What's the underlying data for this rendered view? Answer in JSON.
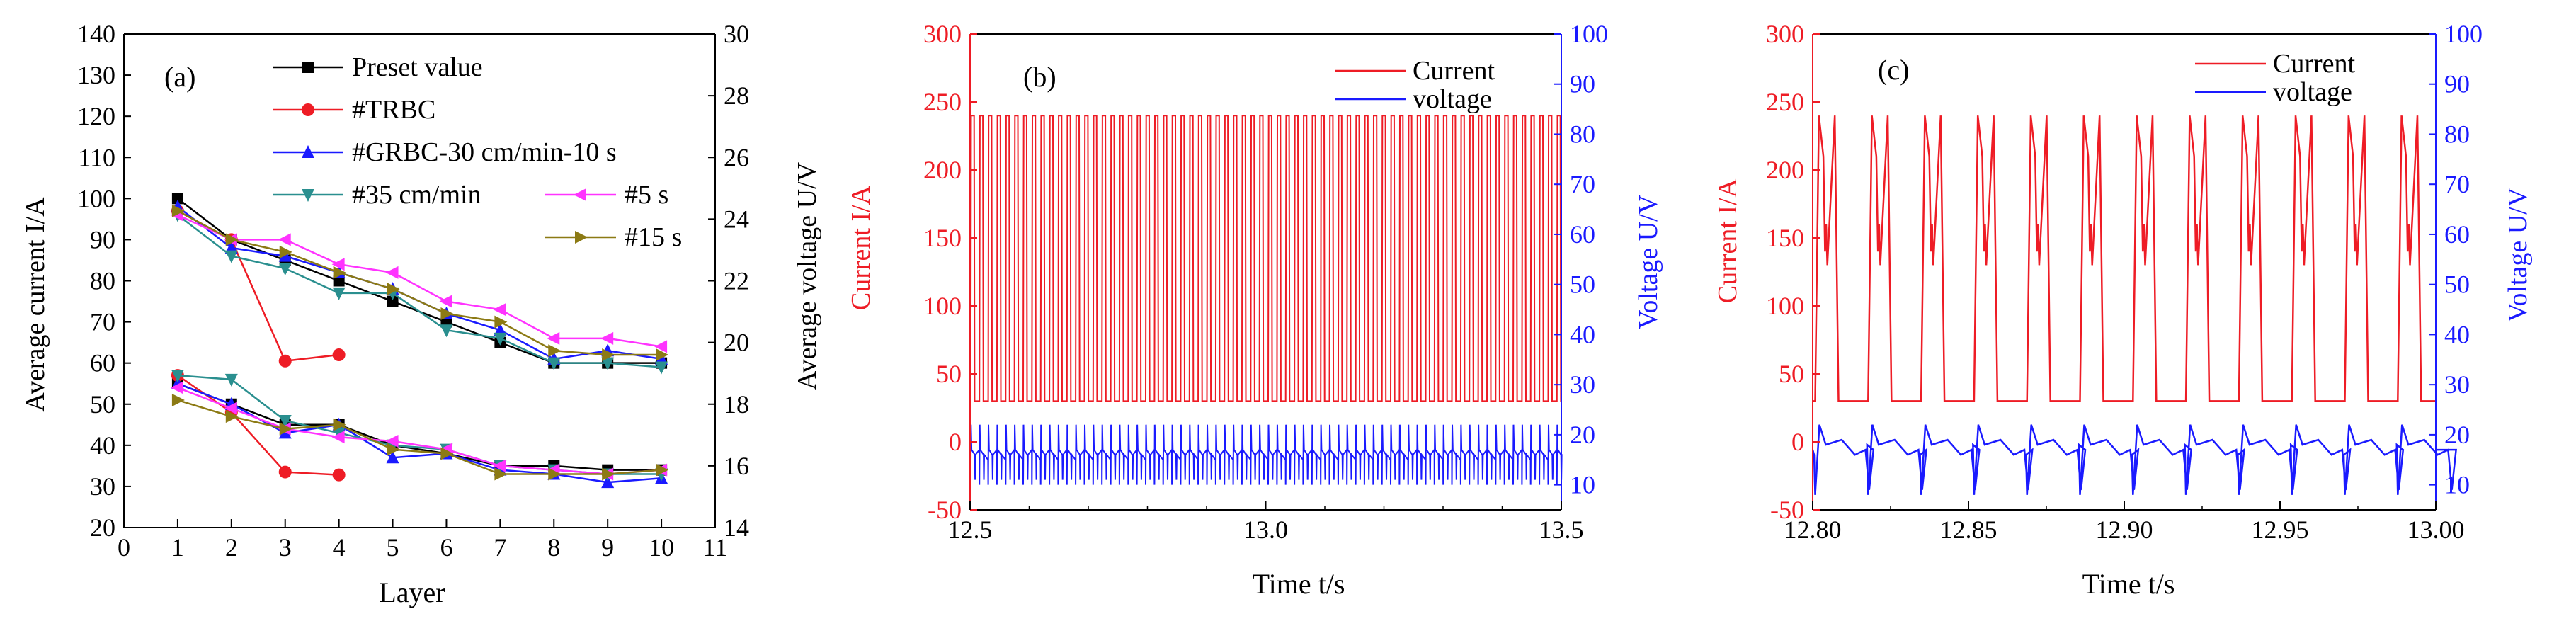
{
  "colors": {
    "black": "#000000",
    "red": "#ee1c25",
    "blue": "#1a1aff",
    "teal": "#2a8f8f",
    "magenta": "#ff33ff",
    "olive": "#8c7a14"
  },
  "chart_data": [
    {
      "id": "a",
      "type": "line",
      "panel_label": "(a)",
      "xlabel": "Layer",
      "ylabel_left": "Average current I/A",
      "ylabel_right": "Average voltage U/V",
      "xlim": [
        0,
        11
      ],
      "ylim_left": [
        20,
        140
      ],
      "ylim_right": [
        14,
        30
      ],
      "x_ticks": [
        "0",
        "1",
        "2",
        "3",
        "4",
        "5",
        "6",
        "7",
        "8",
        "9",
        "10",
        "11"
      ],
      "y_left_ticks": [
        "20",
        "30",
        "40",
        "50",
        "60",
        "70",
        "80",
        "90",
        "100",
        "110",
        "120",
        "130",
        "140"
      ],
      "y_right_ticks": [
        "14",
        "16",
        "18",
        "20",
        "22",
        "24",
        "26",
        "28",
        "30"
      ],
      "legend": [
        {
          "label": "Preset value",
          "color": "#000000",
          "marker": "square"
        },
        {
          "label": "#TRBC",
          "color": "#ee1c25",
          "marker": "circle"
        },
        {
          "label": "#GRBC-30 cm/min-10 s",
          "color": "#1a1aff",
          "marker": "triangle-up"
        },
        {
          "label": "#35 cm/min",
          "color": "#2a8f8f",
          "marker": "triangle-down"
        },
        {
          "label": "#5 s",
          "color": "#ff33ff",
          "marker": "triangle-left"
        },
        {
          "label": "#15 s",
          "color": "#8c7a14",
          "marker": "triangle-right"
        }
      ],
      "series": [
        {
          "name": "Preset value",
          "color": "#000000",
          "marker": "square",
          "x": [
            1,
            2,
            3,
            4,
            5,
            6,
            7,
            8,
            9,
            10
          ],
          "current": [
            100,
            90,
            85,
            80,
            75,
            70,
            65,
            60,
            60,
            60
          ],
          "current_low": [
            55,
            50,
            45,
            45,
            40,
            38,
            35,
            35,
            34,
            34
          ]
        },
        {
          "name": "#TRBC",
          "color": "#ee1c25",
          "marker": "circle",
          "x": [
            1,
            2,
            3,
            4
          ],
          "current": [
            97,
            90,
            60.5,
            62
          ],
          "current_low": [
            57,
            48,
            33.5,
            32.8
          ]
        },
        {
          "name": "#GRBC-30 cm/min-10 s",
          "color": "#1a1aff",
          "marker": "triangle-up",
          "x": [
            1,
            2,
            3,
            4,
            5,
            6,
            7,
            8,
            9,
            10
          ],
          "current": [
            98,
            88,
            86,
            82,
            78,
            72,
            68,
            61,
            63,
            61
          ],
          "current_low": [
            55,
            50,
            43,
            45,
            37,
            38,
            34,
            33,
            31,
            32
          ]
        },
        {
          "name": "#35 cm/min",
          "color": "#2a8f8f",
          "marker": "triangle-down",
          "x": [
            1,
            2,
            3,
            4,
            5,
            6,
            7,
            8,
            9,
            10
          ],
          "current": [
            96,
            86,
            83,
            77,
            77,
            68,
            66,
            60,
            60,
            59
          ],
          "current_low": [
            57,
            56,
            46,
            43,
            40,
            39,
            35,
            34,
            33,
            33
          ]
        },
        {
          "name": "#5 s",
          "color": "#ff33ff",
          "marker": "triangle-left",
          "x": [
            1,
            2,
            3,
            4,
            5,
            6,
            7,
            8,
            9,
            10
          ],
          "current": [
            96,
            90,
            90,
            84,
            82,
            75,
            73,
            66,
            66,
            64
          ],
          "current_low": [
            54,
            49,
            44,
            42,
            41,
            39,
            35,
            34,
            33,
            34
          ]
        },
        {
          "name": "#15 s",
          "color": "#8c7a14",
          "marker": "triangle-right",
          "x": [
            1,
            2,
            3,
            4,
            5,
            6,
            7,
            8,
            9,
            10
          ],
          "current": [
            97,
            90,
            87,
            82,
            78,
            72,
            70,
            63,
            62,
            62
          ],
          "current_low": [
            51,
            47,
            44,
            45,
            39,
            38,
            33,
            33,
            33,
            34
          ]
        }
      ]
    },
    {
      "id": "b",
      "type": "line",
      "panel_label": "(b)",
      "xlabel": "Time t/s",
      "ylabel_left": "Current I/A",
      "ylabel_right": "Voltage U/V",
      "xlim": [
        12.5,
        13.5
      ],
      "ylim_left": [
        -50,
        300
      ],
      "ylim_right": [
        5,
        100
      ],
      "x_ticks": [
        "12.5",
        "13.0",
        "13.5"
      ],
      "y_left_ticks": [
        "-50",
        "0",
        "50",
        "100",
        "150",
        "200",
        "250",
        "300"
      ],
      "y_right_ticks": [
        "10",
        "20",
        "30",
        "40",
        "50",
        "60",
        "70",
        "80",
        "90",
        "100"
      ],
      "legend": [
        {
          "label": "Current",
          "color": "#ee1c25"
        },
        {
          "label": "voltage",
          "color": "#1a1aff"
        }
      ],
      "series": [
        {
          "name": "Current",
          "color": "#ee1c25",
          "waveform": "pulse",
          "pulse_period_s": 0.0148,
          "peak_A": 240,
          "base_A": 30,
          "duty": 0.45
        },
        {
          "name": "voltage",
          "color": "#1a1aff",
          "waveform": "pulse",
          "pulse_period_s": 0.0148,
          "high_V": 22,
          "mean_V": 16,
          "low_V": 10
        }
      ]
    },
    {
      "id": "c",
      "type": "line",
      "panel_label": "(c)",
      "xlabel": "Time t/s",
      "ylabel_left": "Current I/A",
      "ylabel_right": "Voltage U/V",
      "xlim": [
        12.8,
        13.0
      ],
      "ylim_left": [
        -50,
        300
      ],
      "ylim_right": [
        5,
        100
      ],
      "x_ticks": [
        "12.80",
        "12.85",
        "12.90",
        "12.95",
        "13.00"
      ],
      "y_left_ticks": [
        "-50",
        "0",
        "50",
        "100",
        "150",
        "200",
        "250",
        "300"
      ],
      "y_right_ticks": [
        "10",
        "20",
        "30",
        "40",
        "50",
        "60",
        "70",
        "80",
        "90",
        "100"
      ],
      "legend": [
        {
          "label": "Current",
          "color": "#ee1c25"
        },
        {
          "label": "voltage",
          "color": "#1a1aff"
        }
      ],
      "series": [
        {
          "name": "Current",
          "color": "#ee1c25",
          "waveform": "pulse",
          "pulse_starts_s": [
            12.8008,
            12.8178,
            12.8348,
            12.8518,
            12.8688,
            12.8858,
            12.9028,
            12.9198,
            12.9368,
            12.9538,
            12.9708,
            12.9878
          ],
          "peak_A": 240,
          "shoulder_A": 140,
          "base_A": 30
        },
        {
          "name": "voltage",
          "color": "#1a1aff",
          "waveform": "pulse",
          "high_V": 22,
          "mean_V": 17,
          "low_V": 8
        }
      ]
    }
  ]
}
